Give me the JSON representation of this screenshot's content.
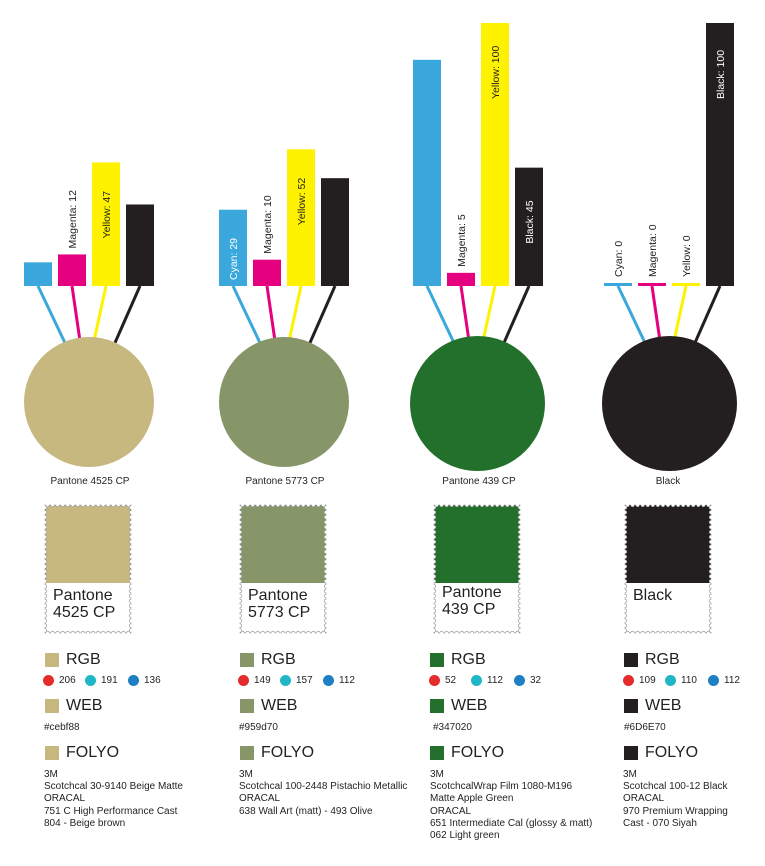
{
  "colors": {
    "cyan": "#3aa8dc",
    "magenta": "#e4007f",
    "yellow": "#fff200",
    "black": "#231f20",
    "red_dot": "#e52b2b",
    "green_dot": "#1fb7c6",
    "blue_dot": "#1e7fc2"
  },
  "chart_data": [
    {
      "type": "bar",
      "categories": [
        "Cyan",
        "Magenta",
        "Yellow",
        "Black"
      ],
      "values": [
        9,
        12,
        47,
        31
      ],
      "labels": [
        "",
        "Magenta: 12",
        "Yellow: 47",
        ""
      ]
    },
    {
      "type": "bar",
      "categories": [
        "Cyan",
        "Magenta",
        "Yellow",
        "Black"
      ],
      "values": [
        29,
        10,
        52,
        41
      ],
      "labels": [
        "Cyan: 29",
        "Magenta: 10",
        "Yellow: 52",
        ""
      ]
    },
    {
      "type": "bar",
      "categories": [
        "Cyan",
        "Magenta",
        "Yellow",
        "Black"
      ],
      "values": [
        86,
        5,
        100,
        45
      ],
      "labels": [
        "",
        "Magenta: 5",
        "Yellow: 100",
        "Black: 45"
      ]
    },
    {
      "type": "bar",
      "categories": [
        "Cyan",
        "Magenta",
        "Yellow",
        "Black"
      ],
      "values": [
        0,
        0,
        0,
        100
      ],
      "labels": [
        "Cyan: 0",
        "Magenta: 0",
        "Yellow: 0",
        "Black: 100"
      ]
    }
  ],
  "swatches": [
    {
      "name": "Pantone 4525 CP",
      "stamp_line1": "Pantone",
      "stamp_line2": "4525 CP",
      "color": "#c7b880",
      "rgb_label": "RGB",
      "rgb": [
        "206",
        "191",
        "136"
      ],
      "web_label": "WEB",
      "web": "#cebf88",
      "folyo_label": "FOLYO",
      "folyo": [
        "3M",
        "Scotchcal 30-9140 Beige Matte",
        "ORACAL",
        "751 C High Performance Cast",
        "804 - Beige brown"
      ]
    },
    {
      "name": "Pantone 5773 CP",
      "stamp_line1": "Pantone",
      "stamp_line2": "5773 CP",
      "color": "#869669",
      "rgb_label": "RGB",
      "rgb": [
        "149",
        "157",
        "112"
      ],
      "web_label": "WEB",
      "web": "#959d70",
      "folyo_label": "FOLYO",
      "folyo": [
        "3M",
        "Scotchcal 100-2448 Pistachio Metallic",
        "ORACAL",
        " 638 Wall Art (matt) - 493 Olive"
      ]
    },
    {
      "name": "Pantone 439 CP",
      "stamp_line1": "Pantone",
      "stamp_line2": "439 CP",
      "color": "#23702c",
      "rgb_label": "RGB",
      "rgb": [
        "52",
        "112",
        "32"
      ],
      "web_label": "WEB",
      "web": "#347020",
      "folyo_label": "FOLYO",
      "folyo": [
        "3M",
        "ScotchcalWrap Film 1080-M196",
        "Matte Apple Green",
        "ORACAL",
        "651 Intermediate Cal (glossy & matt)",
        "062 Light green"
      ]
    },
    {
      "name": "Black",
      "stamp_line1": "Black",
      "stamp_line2": "",
      "color": "#231f20",
      "rgb_label": "RGB",
      "rgb": [
        "109",
        "110",
        "112"
      ],
      "web_label": "WEB",
      "web": "#6D6E70",
      "folyo_label": "FOLYO",
      "folyo": [
        "3M",
        "Scotchcal 100-12 Black",
        "ORACAL",
        "970 Premium Wrapping",
        "Cast - 070 Siyah"
      ]
    }
  ]
}
